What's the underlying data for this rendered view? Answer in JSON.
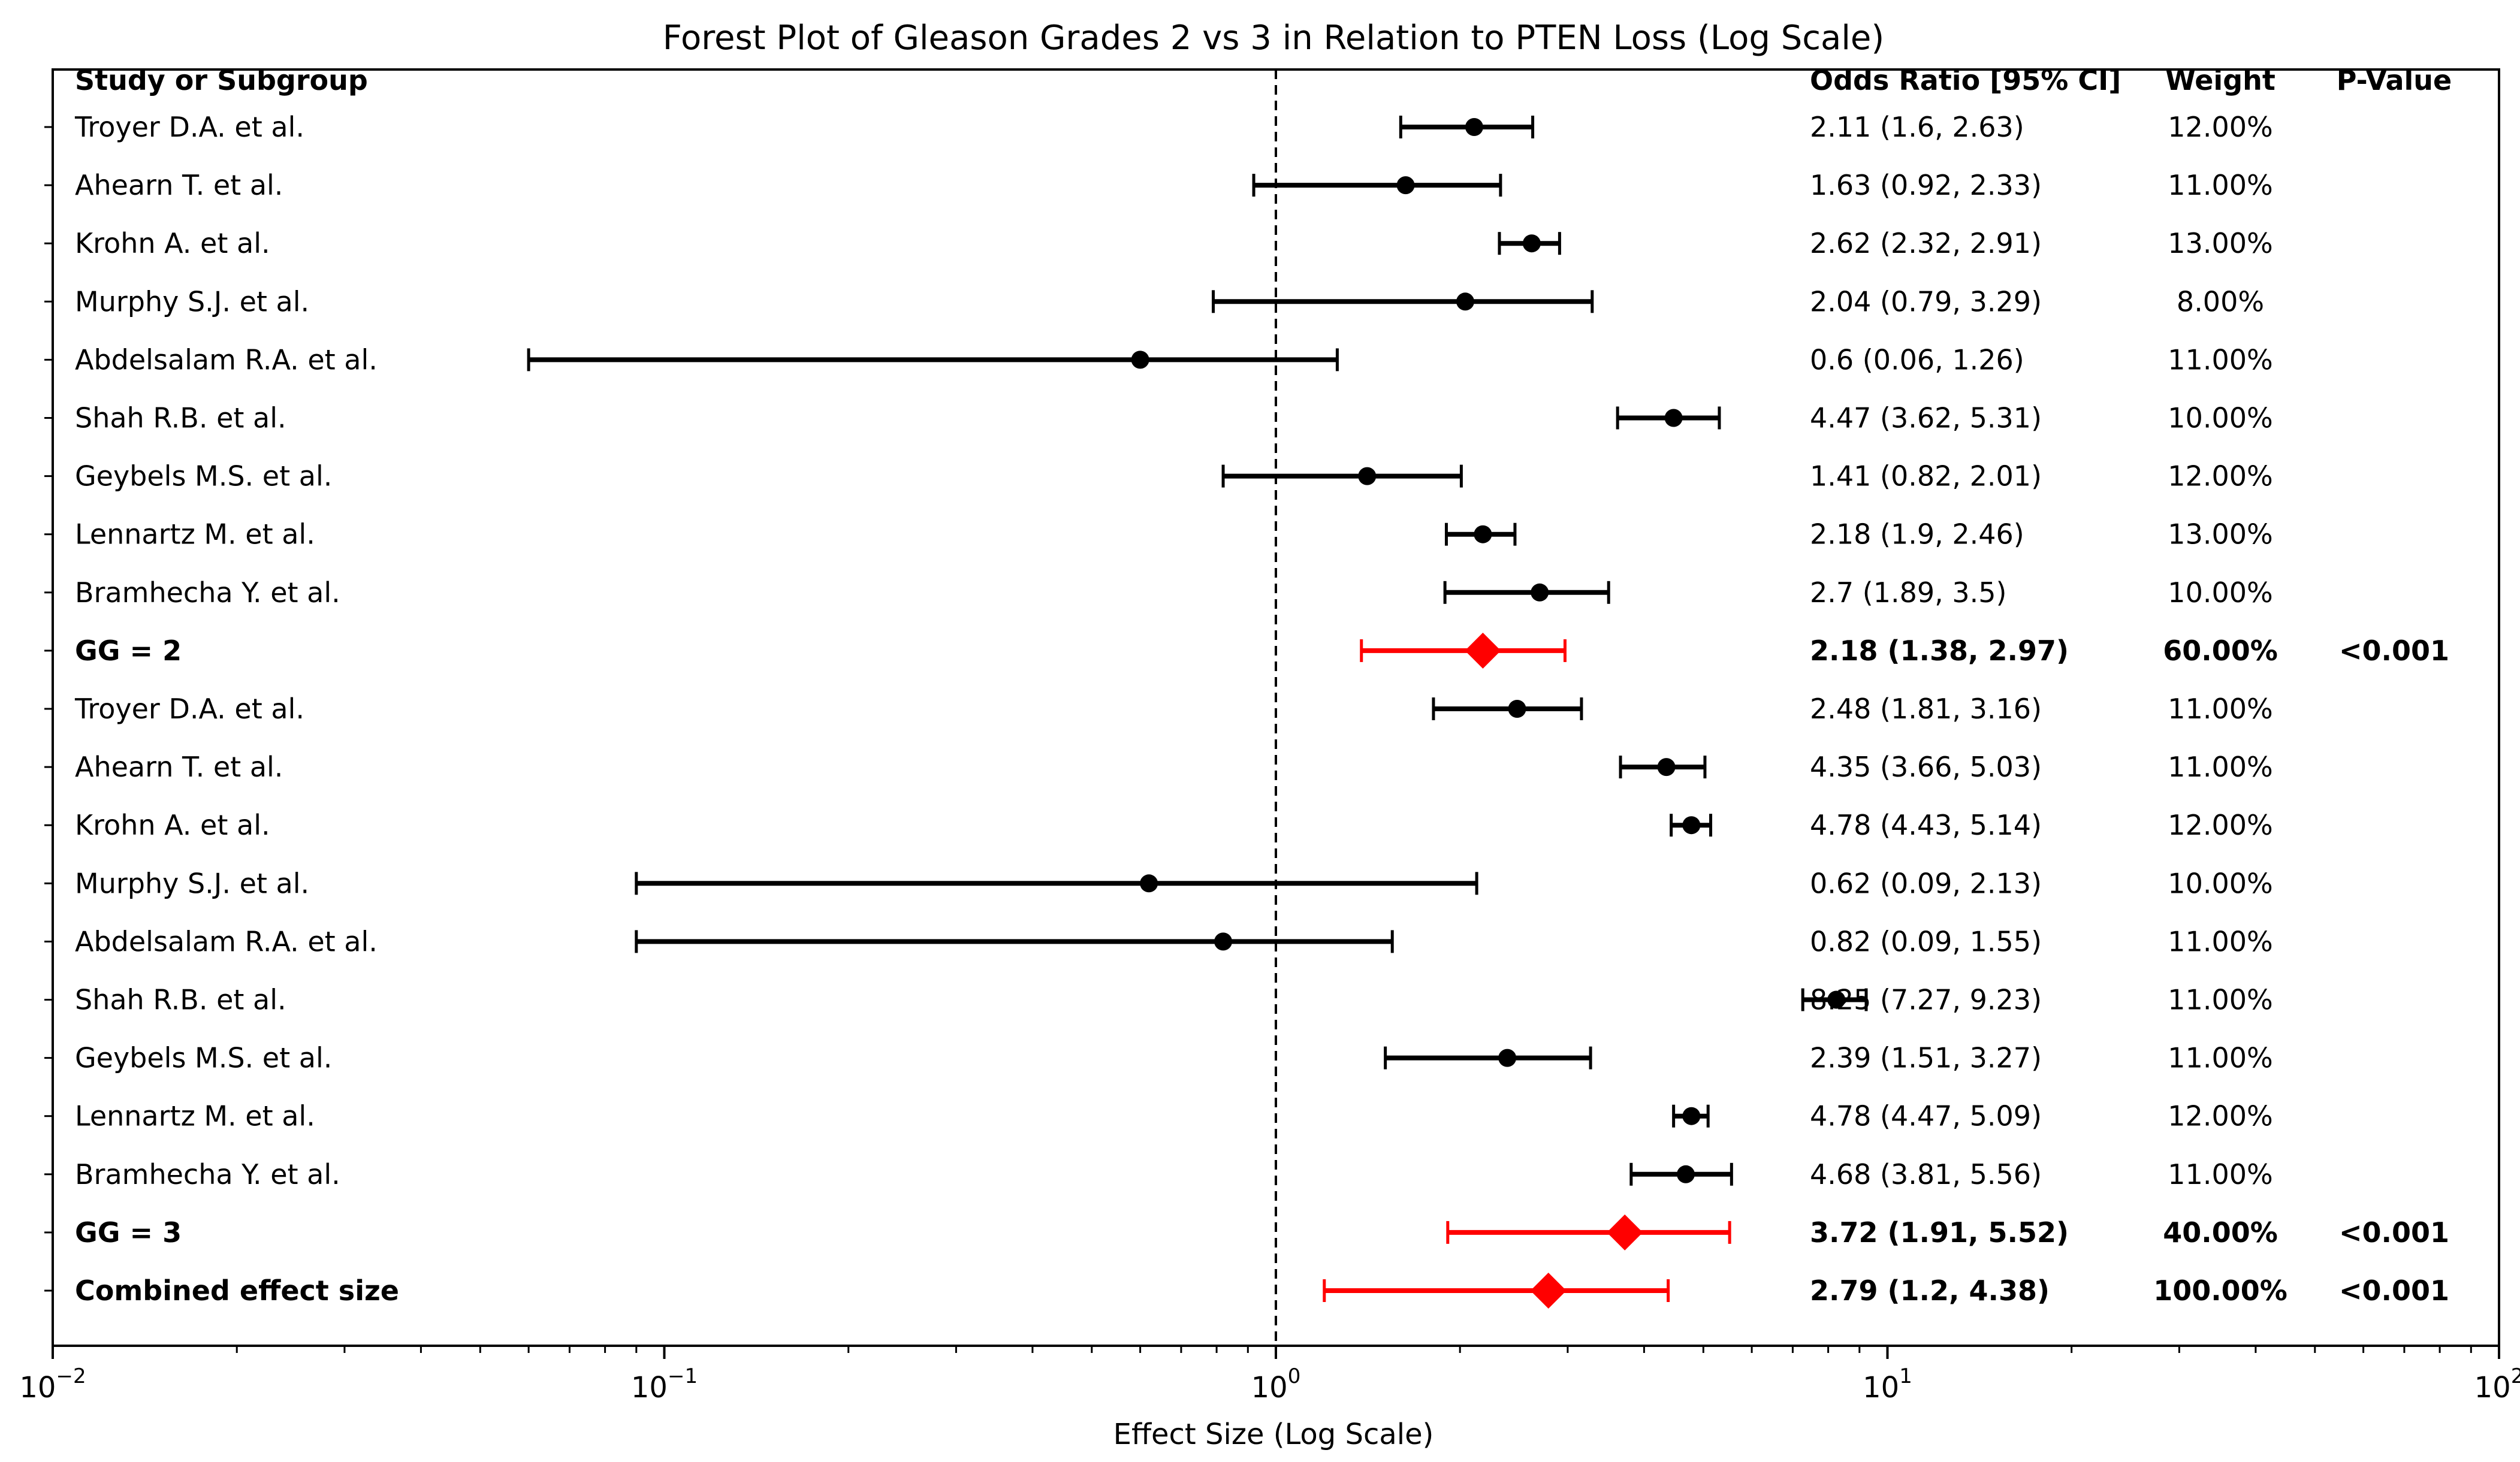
{
  "chart_data": {
    "type": "forest",
    "title": "Forest Plot of Gleason Grades 2 vs 3 in Relation to PTEN Loss (Log Scale)",
    "xlabel": "Effect Size (Log Scale)",
    "xscale": "log",
    "xlim": [
      0.01,
      100
    ],
    "reference_line": 1,
    "x_ticks": [
      {
        "value": 0.01,
        "base": "10",
        "exp": "−2"
      },
      {
        "value": 0.1,
        "base": "10",
        "exp": "−1"
      },
      {
        "value": 1,
        "base": "10",
        "exp": "0"
      },
      {
        "value": 10,
        "base": "10",
        "exp": "1"
      },
      {
        "value": 100,
        "base": "10",
        "exp": "2"
      }
    ],
    "headers": {
      "study": "Study or Subgroup",
      "or": "Odds Ratio [95% CI]",
      "weight": "Weight",
      "pvalue": "P-Value"
    },
    "rows": [
      {
        "label": "Troyer D.A. et al.",
        "or": 2.11,
        "lo": 1.6,
        "hi": 2.63,
        "or_text": "2.11 (1.6, 2.63)",
        "weight": "12.00%",
        "p": "",
        "kind": "study"
      },
      {
        "label": "Ahearn T. et al.",
        "or": 1.63,
        "lo": 0.92,
        "hi": 2.33,
        "or_text": "1.63 (0.92, 2.33)",
        "weight": "11.00%",
        "p": "",
        "kind": "study"
      },
      {
        "label": "Krohn A. et al.",
        "or": 2.62,
        "lo": 2.32,
        "hi": 2.91,
        "or_text": "2.62 (2.32, 2.91)",
        "weight": "13.00%",
        "p": "",
        "kind": "study"
      },
      {
        "label": "Murphy S.J. et al.",
        "or": 2.04,
        "lo": 0.79,
        "hi": 3.29,
        "or_text": "2.04 (0.79, 3.29)",
        "weight": "8.00%",
        "p": "",
        "kind": "study"
      },
      {
        "label": "Abdelsalam R.A. et al.",
        "or": 0.6,
        "lo": 0.06,
        "hi": 1.26,
        "or_text": "0.6 (0.06, 1.26)",
        "weight": "11.00%",
        "p": "",
        "kind": "study"
      },
      {
        "label": "Shah R.B. et al.",
        "or": 4.47,
        "lo": 3.62,
        "hi": 5.31,
        "or_text": "4.47 (3.62, 5.31)",
        "weight": "10.00%",
        "p": "",
        "kind": "study"
      },
      {
        "label": "Geybels M.S. et al.",
        "or": 1.41,
        "lo": 0.82,
        "hi": 2.01,
        "or_text": "1.41 (0.82, 2.01)",
        "weight": "12.00%",
        "p": "",
        "kind": "study"
      },
      {
        "label": "Lennartz M. et al.",
        "or": 2.18,
        "lo": 1.9,
        "hi": 2.46,
        "or_text": "2.18 (1.9, 2.46)",
        "weight": "13.00%",
        "p": "",
        "kind": "study"
      },
      {
        "label": "Bramhecha Y. et al.",
        "or": 2.7,
        "lo": 1.89,
        "hi": 3.5,
        "or_text": "2.7 (1.89, 3.5)",
        "weight": "10.00%",
        "p": "",
        "kind": "study"
      },
      {
        "label": "GG = 2",
        "or": 2.18,
        "lo": 1.38,
        "hi": 2.97,
        "or_text": "2.18 (1.38, 2.97)",
        "weight": "60.00%",
        "p": "<0.001",
        "kind": "summary"
      },
      {
        "label": "Troyer D.A. et al.",
        "or": 2.48,
        "lo": 1.81,
        "hi": 3.16,
        "or_text": "2.48 (1.81, 3.16)",
        "weight": "11.00%",
        "p": "",
        "kind": "study"
      },
      {
        "label": "Ahearn T. et al.",
        "or": 4.35,
        "lo": 3.66,
        "hi": 5.03,
        "or_text": "4.35 (3.66, 5.03)",
        "weight": "11.00%",
        "p": "",
        "kind": "study"
      },
      {
        "label": "Krohn A. et al.",
        "or": 4.78,
        "lo": 4.43,
        "hi": 5.14,
        "or_text": "4.78 (4.43, 5.14)",
        "weight": "12.00%",
        "p": "",
        "kind": "study"
      },
      {
        "label": "Murphy S.J. et al.",
        "or": 0.62,
        "lo": 0.09,
        "hi": 2.13,
        "or_text": "0.62 (0.09, 2.13)",
        "weight": "10.00%",
        "p": "",
        "kind": "study"
      },
      {
        "label": "Abdelsalam R.A. et al.",
        "or": 0.82,
        "lo": 0.09,
        "hi": 1.55,
        "or_text": "0.82 (0.09, 1.55)",
        "weight": "11.00%",
        "p": "",
        "kind": "study"
      },
      {
        "label": "Shah R.B. et al.",
        "or": 8.25,
        "lo": 7.27,
        "hi": 9.23,
        "or_text": "8.25 (7.27, 9.23)",
        "weight": "11.00%",
        "p": "",
        "kind": "study"
      },
      {
        "label": "Geybels M.S. et al.",
        "or": 2.39,
        "lo": 1.51,
        "hi": 3.27,
        "or_text": "2.39 (1.51, 3.27)",
        "weight": "11.00%",
        "p": "",
        "kind": "study"
      },
      {
        "label": "Lennartz M. et al.",
        "or": 4.78,
        "lo": 4.47,
        "hi": 5.09,
        "or_text": "4.78 (4.47, 5.09)",
        "weight": "12.00%",
        "p": "",
        "kind": "study"
      },
      {
        "label": "Bramhecha Y. et al.",
        "or": 4.68,
        "lo": 3.81,
        "hi": 5.56,
        "or_text": "4.68 (3.81, 5.56)",
        "weight": "11.00%",
        "p": "",
        "kind": "study"
      },
      {
        "label": "GG = 3",
        "or": 3.72,
        "lo": 1.91,
        "hi": 5.52,
        "or_text": "3.72 (1.91, 5.52)",
        "weight": "40.00%",
        "p": "<0.001",
        "kind": "summary"
      },
      {
        "label": "Combined effect size",
        "or": 2.79,
        "lo": 1.2,
        "hi": 4.38,
        "or_text": "2.79 (1.2, 4.38)",
        "weight": "100.00%",
        "p": "<0.001",
        "kind": "summary"
      }
    ],
    "colors": {
      "study": "#000000",
      "summary": "#ff0000",
      "reference": "#000000"
    }
  }
}
